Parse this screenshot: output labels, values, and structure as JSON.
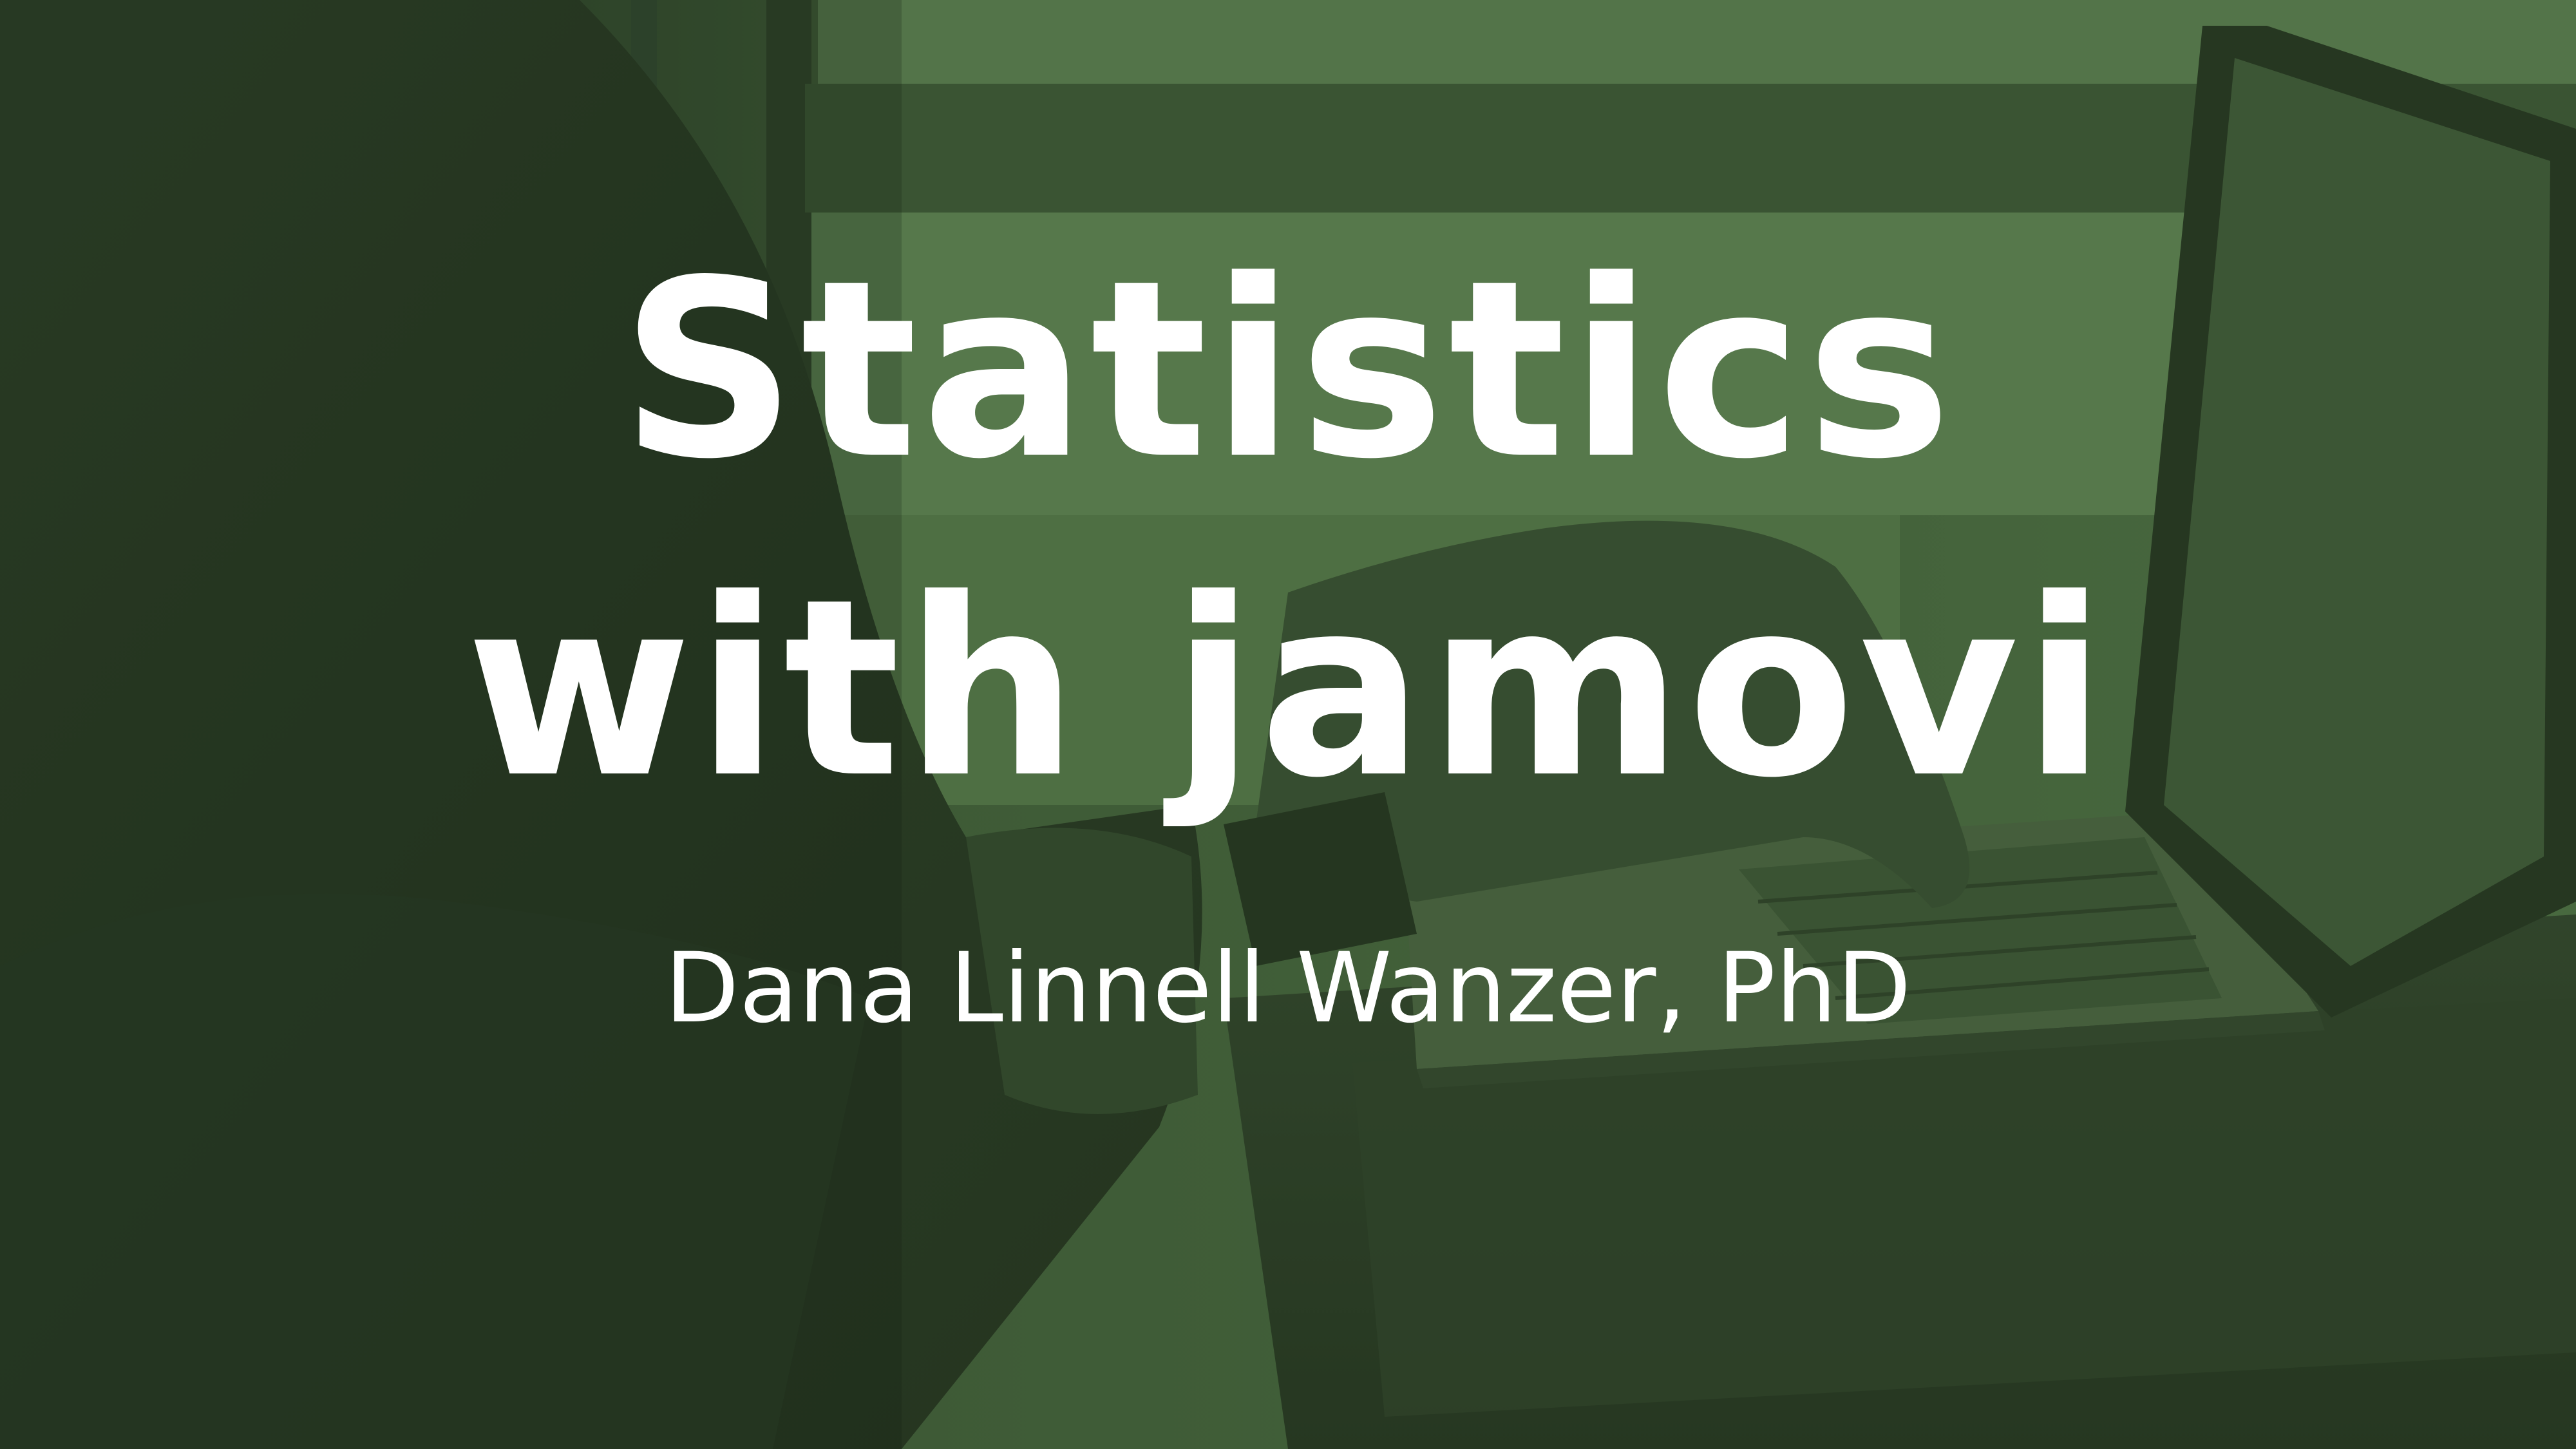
{
  "title": {
    "line1": "Statistics",
    "line2": "with jamovi"
  },
  "author": "Dana Linnell Wanzer, PhD",
  "colors": {
    "overlay": "#4a6b3f",
    "dark": "#1f2a1b",
    "text": "#ffffff"
  }
}
